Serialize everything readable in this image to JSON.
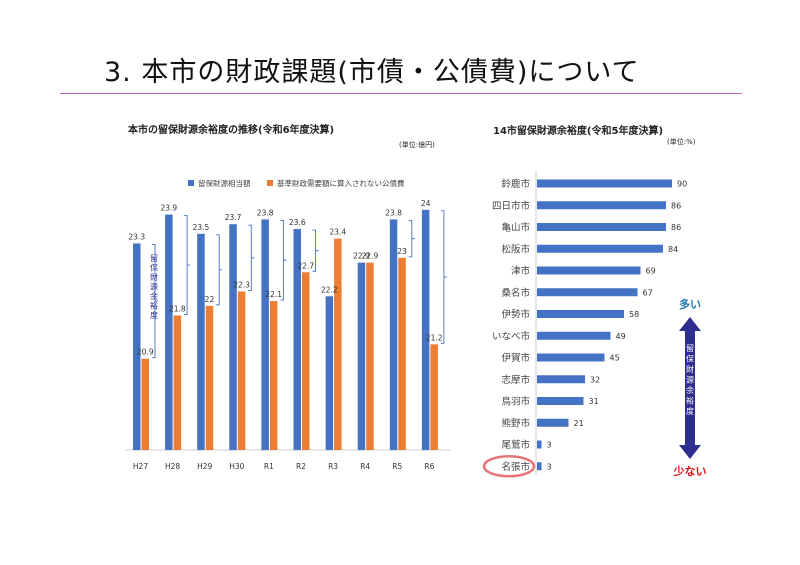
{
  "slide": {
    "title": "3. 本市の財政課題(市債・公債費)について"
  },
  "left_panel": {
    "title": "本市の留保財源余裕度の推移(令和6年度決算)",
    "unit": "(単位:億円)"
  },
  "right_panel": {
    "title": "14市留保財源余裕度(令和5年度決算)",
    "unit": "(単位:%)"
  },
  "colors": {
    "blue": "#4472c4",
    "orange": "#ed7d31",
    "bracket": "#4472c4",
    "arrow": "#2e2e8f",
    "more": "#1f77b4",
    "less": "#e0101d",
    "highlight": "#e87575",
    "title_rule": "#b06bb8"
  },
  "chart_data": [
    {
      "type": "bar",
      "title": "本市の留保財源余裕度の推移(令和6年度決算)",
      "unit": "(単位:億円)",
      "categories": [
        "H27",
        "H28",
        "H29",
        "H30",
        "R1",
        "R2",
        "R3",
        "R4",
        "R5",
        "R6"
      ],
      "series": [
        {
          "name": "留保財源相当額",
          "color": "#4472c4",
          "values": [
            23.3,
            23.9,
            23.5,
            23.7,
            23.8,
            23.6,
            22.2,
            22.9,
            23.8,
            24
          ]
        },
        {
          "name": "基準財政需要額に算入されない公債費",
          "color": "#ed7d31",
          "values": [
            20.9,
            21.8,
            22,
            22.3,
            22.1,
            22.7,
            23.4,
            22.9,
            23,
            21.2
          ]
        }
      ],
      "annotation": "留保財源余裕度",
      "ylim": [
        19,
        24.1
      ]
    },
    {
      "type": "bar",
      "orientation": "horizontal",
      "title": "14市留保財源余裕度(令和5年度決算)",
      "unit": "(単位:%)",
      "categories": [
        "鈴鹿市",
        "四日市市",
        "亀山市",
        "松阪市",
        "津市",
        "桑名市",
        "伊勢市",
        "いなべ市",
        "伊賀市",
        "志摩市",
        "鳥羽市",
        "熊野市",
        "尾鷲市",
        "名張市"
      ],
      "values": [
        90,
        86,
        86,
        84,
        69,
        67,
        58,
        49,
        45,
        32,
        31,
        21,
        3,
        3
      ],
      "highlight": "名張市",
      "axis_label": "留保財源余裕度",
      "top_label": "多い",
      "bottom_label": "少ない",
      "xlim": [
        0,
        100
      ]
    }
  ]
}
